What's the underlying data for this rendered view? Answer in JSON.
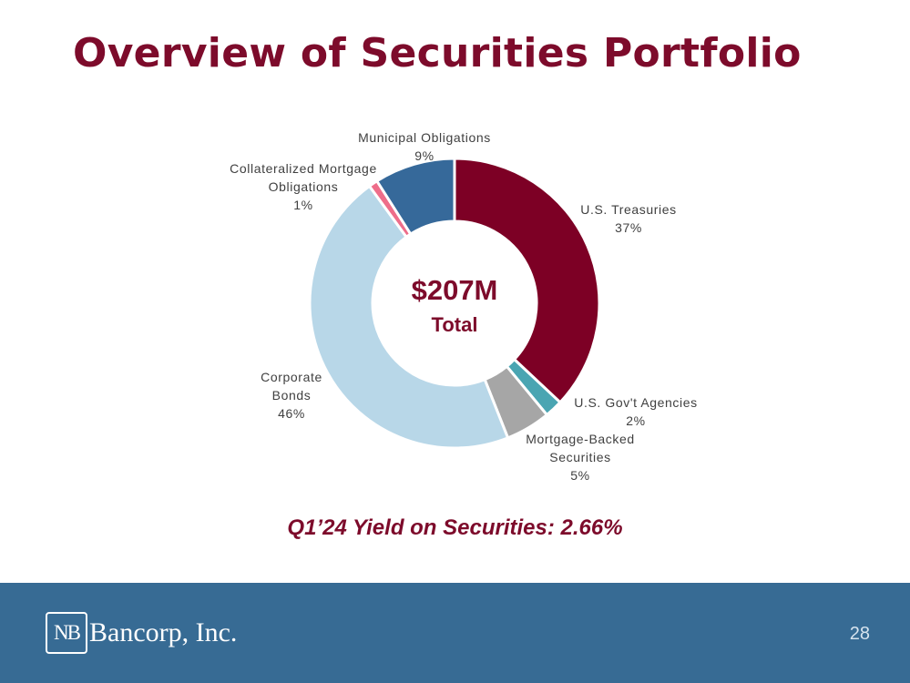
{
  "slide": {
    "title": "Overview of Securities Portfolio",
    "yield_text": "Q1’24 Yield on Securities: 2.66%",
    "page_number": "28"
  },
  "footer": {
    "logo_mark": "NB",
    "logo_text": "Bancorp, Inc."
  },
  "colors": {
    "title": "#7d0b2b",
    "footer_bg": "#376b94"
  },
  "chart_data": {
    "type": "pie",
    "variant": "donut",
    "center_amount": "$207M",
    "center_label": "Total",
    "start": "12 o'clock",
    "direction": "clockwise",
    "slices": [
      {
        "name": "U.S. Treasuries",
        "label_lines": [
          "U.S. Treasuries",
          "37%"
        ],
        "value": 37,
        "color": "#7d0025"
      },
      {
        "name": "U.S. Gov't Agencies",
        "label_lines": [
          "U.S. Gov't Agencies",
          "2%"
        ],
        "value": 2,
        "color": "#4aa5b2"
      },
      {
        "name": "Mortgage-Backed Securities",
        "label_lines": [
          "Mortgage-Backed",
          "Securities",
          "5%"
        ],
        "value": 5,
        "color": "#a6a6a6"
      },
      {
        "name": "Corporate Bonds",
        "label_lines": [
          "Corporate",
          "Bonds",
          "46%"
        ],
        "value": 46,
        "color": "#b8d7e8"
      },
      {
        "name": "Collateralized Mortgage Obligations",
        "label_lines": [
          "Collateralized Mortgage",
          "Obligations",
          "1%"
        ],
        "value": 1,
        "color": "#ee6d8a"
      },
      {
        "name": "Municipal Obligations",
        "label_lines": [
          "Municipal Obligations",
          "9%"
        ],
        "value": 9,
        "color": "#36699a"
      }
    ]
  }
}
